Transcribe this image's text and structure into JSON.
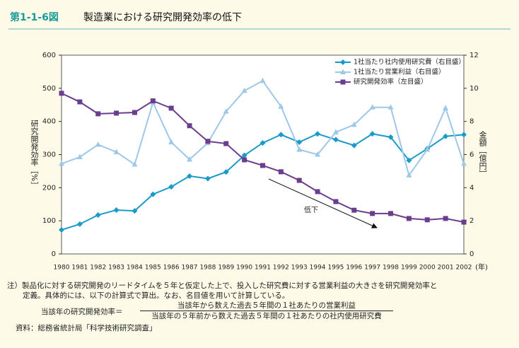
{
  "chart_data": {
    "type": "line",
    "figure_label": "第1-1-6図",
    "title": "製造業における研究開発効率の低下",
    "categories": [
      "1980",
      "1981",
      "1982",
      "1983",
      "1984",
      "1985",
      "1986",
      "1987",
      "1988",
      "1989",
      "1990",
      "1991",
      "1992",
      "1993",
      "1994",
      "1995",
      "1996",
      "1997",
      "1998",
      "1999",
      "2000",
      "2001",
      "2002"
    ],
    "series": [
      {
        "name": "1社当たり社内使用研究費（右目盛）",
        "color": "#1a9ac9",
        "axis": "y2",
        "marker": "diamond",
        "values": [
          1.45,
          1.8,
          2.35,
          2.65,
          2.6,
          3.6,
          4.05,
          4.7,
          4.55,
          4.95,
          5.95,
          6.7,
          7.2,
          6.75,
          7.25,
          6.9,
          6.55,
          7.25,
          7.05,
          5.65,
          6.35,
          7.1,
          7.2
        ]
      },
      {
        "name": "1社当たり営業利益（右目盛）",
        "color": "#9ec8e8",
        "axis": "y2",
        "marker": "triangle",
        "values": [
          5.45,
          5.85,
          6.6,
          6.15,
          5.4,
          9.15,
          6.75,
          5.7,
          6.7,
          8.6,
          9.85,
          10.45,
          8.9,
          6.3,
          6.0,
          7.35,
          7.8,
          8.85,
          8.85,
          4.75,
          6.3,
          8.8,
          5.45
        ]
      },
      {
        "name": "研究開発効率（左目盛）",
        "color": "#6a3d8f",
        "axis": "y",
        "marker": "square",
        "values": [
          485,
          459,
          423,
          425,
          427,
          462,
          440,
          387,
          340,
          333,
          284,
          267,
          248,
          222,
          188,
          158,
          132,
          122,
          122,
          107,
          103,
          107,
          96
        ]
      }
    ],
    "ylim": [
      0,
      600
    ],
    "yticks": [
      0,
      100,
      200,
      300,
      400,
      500,
      600
    ],
    "y2lim": [
      0,
      12
    ],
    "y2ticks": [
      0,
      2,
      4,
      6,
      8,
      10,
      12
    ],
    "ylabel": "研究開発効率［%］",
    "y2label": "金額［億円］",
    "xlabel": "(年)",
    "annotation": "低下",
    "legend": "upper right"
  },
  "notes": {
    "note_line1": "注）製品化に対する研究開発のリードタイムを５年と仮定した上で、投入した研究費に対する営業利益の大きさを研究開発効率と",
    "note_line2": "定義。具体的には、以下の計算式で算出。なお、名目値を用いて計算している。",
    "formula_label": "当該年の研究開発効率＝",
    "numerator": "当該年から数えた過去５年間の１社あたりの営業利益",
    "denominator": "当該年の５年前から数えた過去５年間の１社あたりの社内使用研究費",
    "source": "資料：総務省統計局「科学技術研究調査」"
  }
}
